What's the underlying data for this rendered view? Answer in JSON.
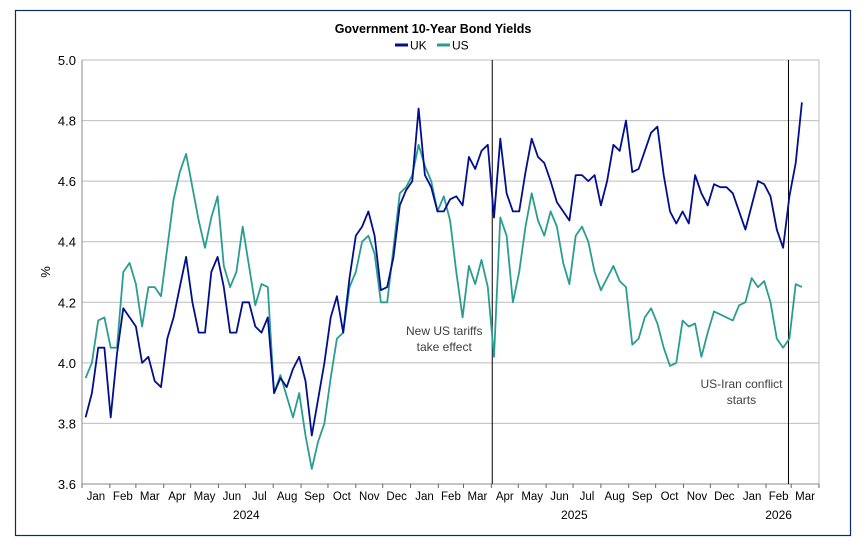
{
  "chart_data": {
    "type": "line",
    "title": "Government 10-Year Bond Yields",
    "xlabel": "",
    "ylabel": "%",
    "ylim": [
      3.6,
      5.0
    ],
    "yticks": [
      "3.6",
      "3.8",
      "4.0",
      "4.2",
      "4.4",
      "4.6",
      "4.8",
      "5.0"
    ],
    "grid": "horizontal",
    "legend": "top-center",
    "x_range": [
      "2024-01-01",
      "2026-04-01"
    ],
    "x_start": "2024-01-05",
    "frequency": "weekly",
    "month_labels": [
      "Jan",
      "Feb",
      "Mar",
      "Apr",
      "May",
      "Jun",
      "Jul",
      "Aug",
      "Sep",
      "Oct",
      "Nov",
      "Dec",
      "Jan",
      "Feb",
      "Mar",
      "Apr",
      "May",
      "Jun",
      "Jul",
      "Aug",
      "Sep",
      "Oct",
      "Nov",
      "Dec",
      "Jan",
      "Feb",
      "Mar"
    ],
    "year_labels": [
      "2024",
      "2025",
      "2026"
    ],
    "series": [
      {
        "name": "UK",
        "color": "#000f8c",
        "values": [
          3.82,
          3.9,
          4.05,
          4.05,
          3.82,
          4.03,
          4.18,
          4.15,
          4.12,
          4.0,
          4.02,
          3.94,
          3.92,
          4.08,
          4.15,
          4.25,
          4.35,
          4.2,
          4.1,
          4.1,
          4.3,
          4.35,
          4.25,
          4.1,
          4.1,
          4.2,
          4.2,
          4.12,
          4.1,
          4.15,
          3.9,
          3.95,
          3.92,
          3.98,
          4.02,
          3.94,
          3.76,
          3.88,
          4.0,
          4.15,
          4.22,
          4.1,
          4.28,
          4.42,
          4.45,
          4.5,
          4.42,
          4.24,
          4.25,
          4.35,
          4.52,
          4.57,
          4.6,
          4.84,
          4.62,
          4.58,
          4.5,
          4.5,
          4.54,
          4.55,
          4.52,
          4.68,
          4.64,
          4.7,
          4.72,
          4.48,
          4.74,
          4.56,
          4.5,
          4.5,
          4.63,
          4.74,
          4.68,
          4.66,
          4.6,
          4.53,
          4.5,
          4.47,
          4.62,
          4.62,
          4.6,
          4.62,
          4.52,
          4.6,
          4.72,
          4.7,
          4.8,
          4.63,
          4.64,
          4.7,
          4.76,
          4.78,
          4.62,
          4.5,
          4.46,
          4.5,
          4.46,
          4.62,
          4.56,
          4.52,
          4.59,
          4.58,
          4.58,
          4.56,
          4.5,
          4.44,
          4.52,
          4.6,
          4.59,
          4.55,
          4.44,
          4.38,
          4.55,
          4.66,
          4.86
        ]
      },
      {
        "name": "US",
        "color": "#2a9d92",
        "values": [
          3.95,
          4.0,
          4.14,
          4.15,
          4.05,
          4.05,
          4.3,
          4.33,
          4.26,
          4.12,
          4.25,
          4.25,
          4.22,
          4.38,
          4.54,
          4.63,
          4.69,
          4.58,
          4.47,
          4.38,
          4.48,
          4.55,
          4.32,
          4.25,
          4.3,
          4.45,
          4.32,
          4.19,
          4.26,
          4.25,
          3.9,
          3.96,
          3.89,
          3.82,
          3.9,
          3.76,
          3.65,
          3.74,
          3.8,
          3.95,
          4.08,
          4.1,
          4.25,
          4.3,
          4.4,
          4.42,
          4.36,
          4.2,
          4.2,
          4.38,
          4.56,
          4.58,
          4.62,
          4.72,
          4.65,
          4.6,
          4.5,
          4.55,
          4.47,
          4.3,
          4.15,
          4.32,
          4.26,
          4.34,
          4.25,
          4.02,
          4.48,
          4.42,
          4.2,
          4.3,
          4.45,
          4.56,
          4.47,
          4.42,
          4.5,
          4.45,
          4.33,
          4.26,
          4.42,
          4.45,
          4.4,
          4.3,
          4.24,
          4.28,
          4.32,
          4.27,
          4.25,
          4.06,
          4.08,
          4.15,
          4.18,
          4.13,
          4.05,
          3.99,
          4.0,
          4.14,
          4.12,
          4.13,
          4.02,
          4.1,
          4.17,
          4.16,
          4.15,
          4.14,
          4.19,
          4.2,
          4.28,
          4.25,
          4.27,
          4.2,
          4.08,
          4.05,
          4.08,
          4.26,
          4.25
        ]
      }
    ],
    "annotations": [
      {
        "date": "2025-04-02",
        "text_lines": [
          "New US tariffs",
          "take effect"
        ]
      },
      {
        "date": "2026-02-26",
        "text_lines": [
          "US-Iran conflict",
          "starts"
        ]
      }
    ]
  }
}
